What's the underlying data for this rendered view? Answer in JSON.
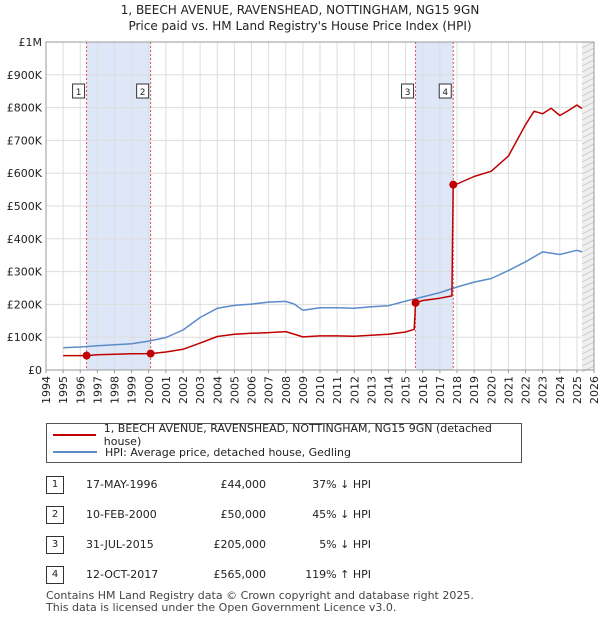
{
  "chart_data": {
    "type": "line",
    "title": "1, BEECH AVENUE, RAVENSHEAD, NOTTINGHAM, NG15 9GN",
    "subtitle": "Price paid vs. HM Land Registry's House Price Index (HPI)",
    "xlim": [
      1994,
      2026
    ],
    "ylim": [
      0,
      1000000
    ],
    "x_ticks": [
      "1994",
      "1995",
      "1996",
      "1997",
      "1998",
      "1999",
      "2000",
      "2001",
      "2002",
      "2003",
      "2004",
      "2005",
      "2006",
      "2007",
      "2008",
      "2009",
      "2010",
      "2011",
      "2012",
      "2013",
      "2014",
      "2015",
      "2016",
      "2017",
      "2018",
      "2019",
      "2020",
      "2021",
      "2022",
      "2023",
      "2024",
      "2025",
      "2026"
    ],
    "y_ticks": [
      {
        "value": 0,
        "label": "£0"
      },
      {
        "value": 100000,
        "label": "£100K"
      },
      {
        "value": 200000,
        "label": "£200K"
      },
      {
        "value": 300000,
        "label": "£300K"
      },
      {
        "value": 400000,
        "label": "£400K"
      },
      {
        "value": 500000,
        "label": "£500K"
      },
      {
        "value": 600000,
        "label": "£600K"
      },
      {
        "value": 700000,
        "label": "£700K"
      },
      {
        "value": 800000,
        "label": "£800K"
      },
      {
        "value": 900000,
        "label": "£900K"
      },
      {
        "value": 1000000,
        "label": "£1M"
      }
    ],
    "shaded_periods": [
      [
        1996.37,
        2000.11
      ],
      [
        2015.58,
        2017.78
      ]
    ],
    "series": [
      {
        "name": "1, BEECH AVENUE, RAVENSHEAD, NOTTINGHAM, NG15 9GN (detached house)",
        "color": "#c00000",
        "x": [
          1995.0,
          1996.37,
          1997,
          1998,
          1999,
          2000.11,
          2001,
          2002,
          2003,
          2004,
          2005,
          2006,
          2007,
          2008,
          2009,
          2010,
          2011,
          2012,
          2013,
          2014,
          2015,
          2015.5,
          2015.58,
          2016,
          2017,
          2017.7,
          2017.78,
          2018,
          2019,
          2020,
          2021,
          2022,
          2022.5,
          2023,
          2023.5,
          2024,
          2024.5,
          2025,
          2025.3
        ],
        "y": [
          44000,
          44000,
          46500,
          48000,
          49500,
          50000,
          55000,
          63000,
          82000,
          102000,
          109000,
          112000,
          114000,
          117000,
          101000,
          104000,
          104000,
          103000,
          106000,
          109000,
          116000,
          124000,
          205000,
          212000,
          219000,
          226000,
          565000,
          567000,
          590000,
          606000,
          652000,
          748000,
          789000,
          781000,
          798000,
          776000,
          791000,
          808000,
          797000
        ]
      },
      {
        "name": "HPI: Average price, detached house, Gedling",
        "color": "#5b8cc9",
        "x": [
          1995,
          1996,
          1997,
          1998,
          1999,
          2000,
          2001,
          2002,
          2003,
          2004,
          2005,
          2006,
          2007,
          2008,
          2008.5,
          2009,
          2010,
          2011,
          2012,
          2013,
          2014,
          2015,
          2016,
          2017,
          2018,
          2019,
          2020,
          2021,
          2022,
          2023,
          2024,
          2025,
          2025.3
        ],
        "y": [
          68000,
          70000,
          74000,
          77000,
          80000,
          88000,
          99000,
          122000,
          160000,
          188000,
          197000,
          201000,
          207000,
          209000,
          201000,
          182000,
          190000,
          190000,
          188000,
          193000,
          196000,
          210000,
          223000,
          236000,
          253000,
          268000,
          279000,
          303000,
          330000,
          360000,
          352000,
          365000,
          360000
        ]
      }
    ],
    "transactions": [
      {
        "num": "1",
        "x": 1996.37,
        "price": 44000
      },
      {
        "num": "2",
        "x": 2000.11,
        "price": 50000
      },
      {
        "num": "3",
        "x": 2015.58,
        "price": 205000
      },
      {
        "num": "4",
        "x": 2017.78,
        "price": 565000
      }
    ]
  },
  "legend": {
    "property": "1, BEECH AVENUE, RAVENSHEAD, NOTTINGHAM, NG15 9GN (detached house)",
    "hpi": "HPI: Average price, detached house, Gedling"
  },
  "table": [
    {
      "num": "1",
      "date": "17-MAY-1996",
      "price": "£44,000",
      "hpi": "37% ↓ HPI"
    },
    {
      "num": "2",
      "date": "10-FEB-2000",
      "price": "£50,000",
      "hpi": "45% ↓ HPI"
    },
    {
      "num": "3",
      "date": "31-JUL-2015",
      "price": "£205,000",
      "hpi": "5% ↓ HPI"
    },
    {
      "num": "4",
      "date": "12-OCT-2017",
      "price": "£565,000",
      "hpi": "119% ↑ HPI"
    }
  ],
  "footer": {
    "line1": "Contains HM Land Registry data © Crown copyright and database right 2025.",
    "line2": "This data is licensed under the Open Government Licence v3.0."
  },
  "colors": {
    "property": "#c00000",
    "hpi": "#5b8cc9",
    "shade": "#dde7f7"
  }
}
